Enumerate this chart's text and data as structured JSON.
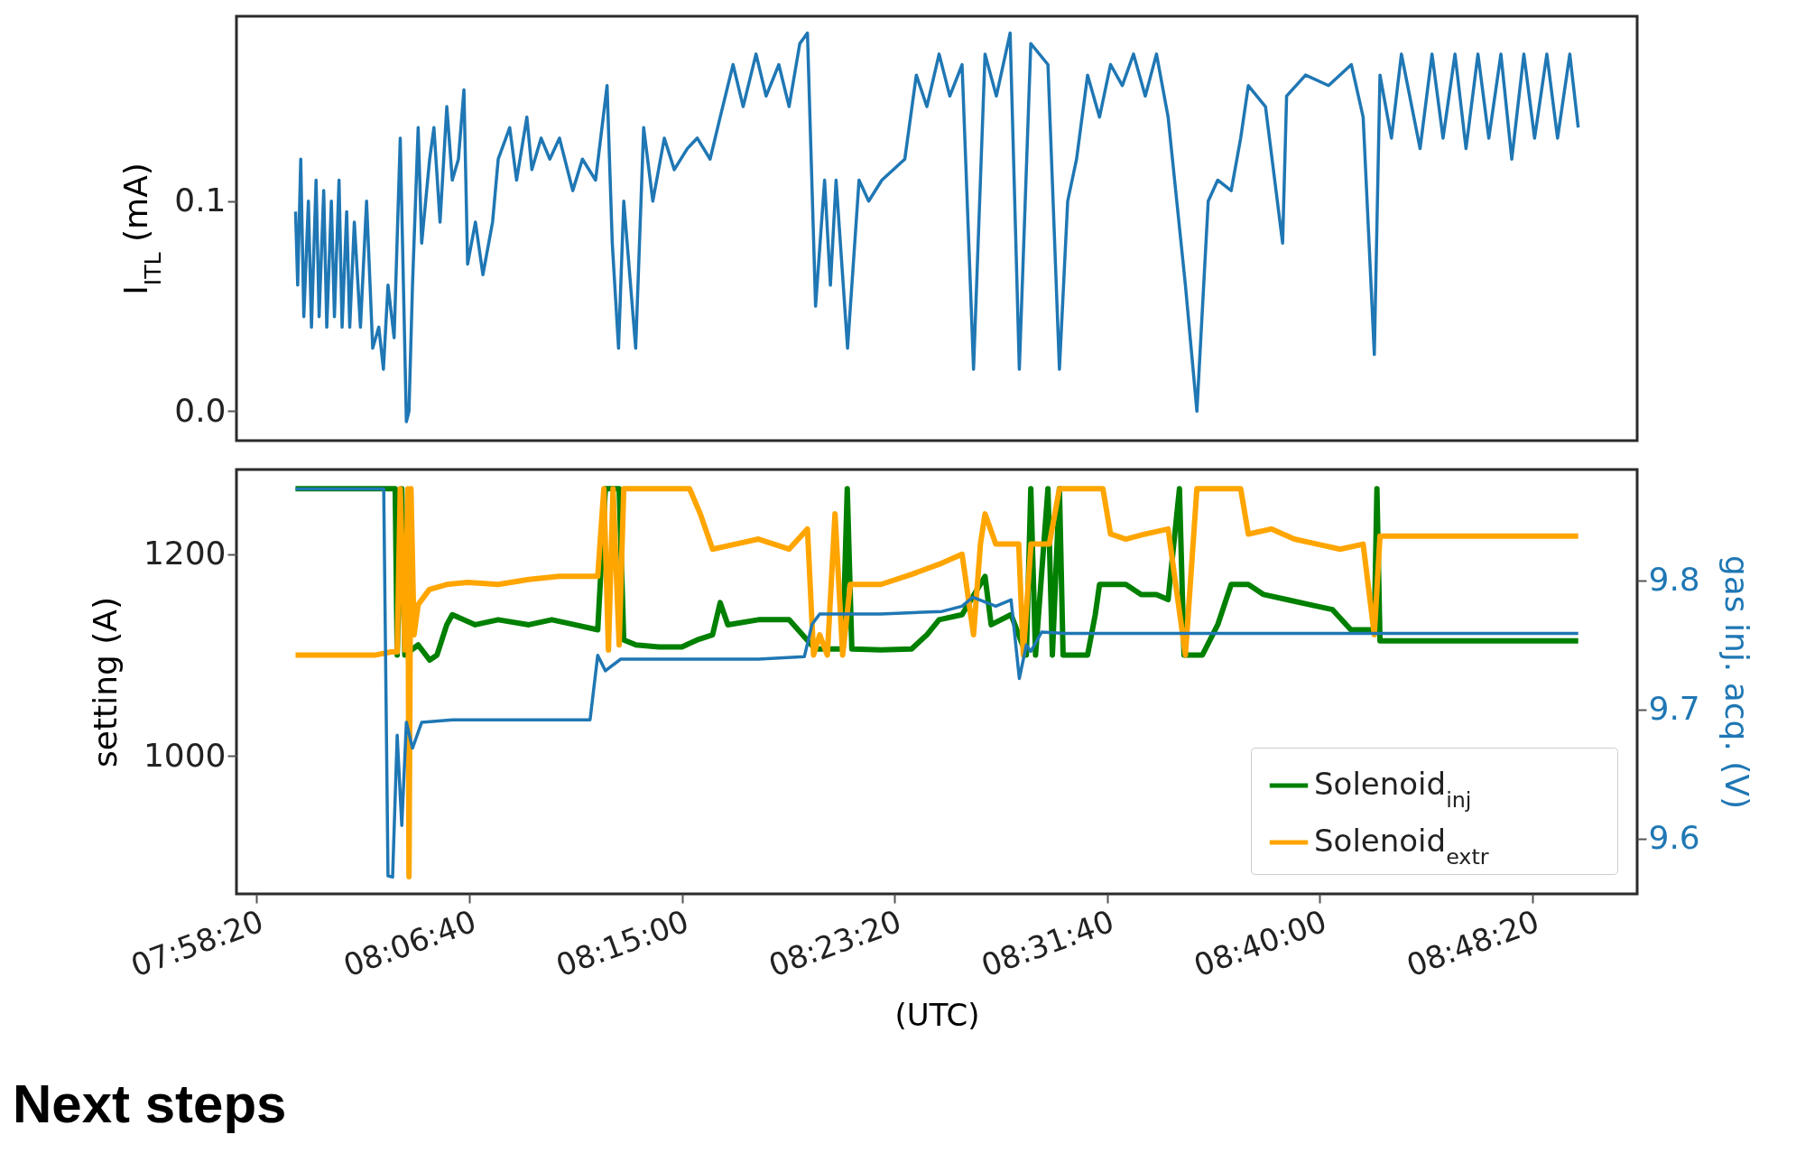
{
  "chart_data": [
    {
      "type": "line",
      "ylabel": "I$_{ITL}$ (mA)",
      "xlim": [
        7.959,
        8.874
      ],
      "ylim": [
        -0.014,
        0.188
      ],
      "yticks": [
        {
          "value": 0,
          "label": "0.0"
        },
        0.1
      ],
      "tick_labels": "y",
      "series": [
        {
          "color": "#1f77b4",
          "x": [
            7.9976,
            7.999,
            8.001,
            8.003,
            8.006,
            8.008,
            8.011,
            8.013,
            8.016,
            8.018,
            8.021,
            8.023,
            8.026,
            8.028,
            8.031,
            8.033,
            8.036,
            8.04,
            8.044,
            8.048,
            8.052,
            8.055,
            8.058,
            8.062,
            8.066,
            8.07,
            8.0717,
            8.074,
            8.0777,
            8.08,
            8.0852,
            8.088,
            8.092,
            8.0964,
            8.1,
            8.104,
            8.1076,
            8.11,
            8.1151,
            8.12,
            8.1263,
            8.13,
            8.1375,
            8.142,
            8.1487,
            8.152,
            8.158,
            8.1637,
            8.17,
            8.1787,
            8.185,
            8.1936,
            8.2011,
            8.2045,
            8.2086,
            8.212,
            8.2198,
            8.225,
            8.231,
            8.2385,
            8.245,
            8.2535,
            8.26,
            8.2684,
            8.275,
            8.2834,
            8.29,
            8.2984,
            8.305,
            8.3133,
            8.32,
            8.327,
            8.332,
            8.3373,
            8.3432,
            8.347,
            8.3507,
            8.3582,
            8.3657,
            8.372,
            8.3806,
            8.3956,
            8.4031,
            8.41,
            8.418,
            8.425,
            8.433,
            8.4405,
            8.448,
            8.4554,
            8.4644,
            8.4704,
            8.4779,
            8.4891,
            8.4966,
            8.502,
            8.5078,
            8.515,
            8.5228,
            8.53,
            8.5377,
            8.545,
            8.5527,
            8.56,
            8.5676,
            8.5789,
            8.5864,
            8.5938,
            8.6,
            8.6088,
            8.615,
            8.62,
            8.6312,
            8.6424,
            8.645,
            8.6574,
            8.6724,
            8.6873,
            8.695,
            8.7023,
            8.706,
            8.7135,
            8.72,
            8.7322,
            8.74,
            8.7472,
            8.755,
            8.7622,
            8.77,
            8.7771,
            8.785,
            8.7921,
            8.8,
            8.807,
            8.815,
            8.822,
            8.83,
            8.8355
          ],
          "values": [
            0.095,
            0.06,
            0.12,
            0.045,
            0.1,
            0.04,
            0.11,
            0.045,
            0.105,
            0.04,
            0.1,
            0.045,
            0.11,
            0.04,
            0.095,
            0.04,
            0.09,
            0.04,
            0.1,
            0.03,
            0.04,
            0.02,
            0.06,
            0.035,
            0.13,
            -0.005,
            0.0,
            0.06,
            0.135,
            0.08,
            0.12,
            0.135,
            0.09,
            0.145,
            0.11,
            0.12,
            0.153,
            0.07,
            0.09,
            0.065,
            0.09,
            0.12,
            0.135,
            0.11,
            0.14,
            0.115,
            0.13,
            0.12,
            0.13,
            0.105,
            0.12,
            0.11,
            0.155,
            0.08,
            0.03,
            0.1,
            0.03,
            0.135,
            0.1,
            0.13,
            0.115,
            0.125,
            0.13,
            0.12,
            0.14,
            0.165,
            0.145,
            0.17,
            0.15,
            0.165,
            0.145,
            0.175,
            0.18,
            0.05,
            0.11,
            0.06,
            0.11,
            0.03,
            0.11,
            0.1,
            0.11,
            0.12,
            0.16,
            0.145,
            0.17,
            0.15,
            0.165,
            0.02,
            0.17,
            0.15,
            0.18,
            0.02,
            0.175,
            0.165,
            0.02,
            0.1,
            0.12,
            0.16,
            0.14,
            0.165,
            0.155,
            0.17,
            0.15,
            0.17,
            0.14,
            0.06,
            0.0,
            0.1,
            0.11,
            0.105,
            0.13,
            0.155,
            0.145,
            0.08,
            0.15,
            0.16,
            0.155,
            0.165,
            0.14,
            0.027,
            0.16,
            0.13,
            0.17,
            0.125,
            0.17,
            0.13,
            0.17,
            0.125,
            0.17,
            0.13,
            0.17,
            0.12,
            0.17,
            0.13,
            0.17,
            0.13,
            0.17,
            0.135
          ]
        }
      ]
    },
    {
      "type": "line",
      "ylabel": "setting (A)",
      "y2label": "gas inj. acq. (V)",
      "xlabel": "(UTC)",
      "xlim": [
        7.959,
        8.874
      ],
      "xticks": [
        {
          "value": 7.97222,
          "label": "07:58:20"
        },
        {
          "value": 8.11111,
          "label": "08:06:40"
        },
        {
          "value": 8.25,
          "label": "08:15:00"
        },
        {
          "value": 8.38889,
          "label": "08:23:20"
        },
        {
          "value": 8.52778,
          "label": "08:31:40"
        },
        {
          "value": 8.66667,
          "label": "08:40:00"
        },
        {
          "value": 8.80556,
          "label": "08:48:20"
        }
      ],
      "ylim": [
        863,
        1284
      ],
      "yticks": [
        1000,
        1200
      ],
      "y2lim": [
        9.557,
        9.886
      ],
      "y2ticks": [
        9.6,
        9.7,
        9.8
      ],
      "legend": "bottom right",
      "annotations": [
        "Next steps"
      ],
      "series": [
        {
          "name": "Solenoid$_{inj}$",
          "color": "#008000",
          "x": [
            7.9976,
            8.0627,
            8.064,
            8.067,
            8.069,
            8.0777,
            8.0852,
            8.09,
            8.0964,
            8.1,
            8.115,
            8.13,
            8.15,
            8.165,
            8.18,
            8.195,
            8.2,
            8.205,
            8.209,
            8.212,
            8.22,
            8.235,
            8.25,
            8.26,
            8.27,
            8.275,
            8.28,
            8.3,
            8.32,
            8.337,
            8.355,
            8.358,
            8.361,
            8.38,
            8.4,
            8.41,
            8.418,
            8.433,
            8.448,
            8.452,
            8.465,
            8.475,
            8.4779,
            8.481,
            8.4891,
            8.492,
            8.4966,
            8.499,
            8.505,
            8.515,
            8.52,
            8.5228,
            8.54,
            8.55,
            8.56,
            8.5676,
            8.575,
            8.578,
            8.59,
            8.6,
            8.6088,
            8.62,
            8.63,
            8.645,
            8.66,
            8.675,
            8.687,
            8.7023,
            8.704,
            8.706,
            8.75,
            8.8355
          ],
          "values": [
            1265,
            1265,
            1100,
            1265,
            1100,
            1110,
            1095,
            1100,
            1130,
            1140,
            1130,
            1135,
            1130,
            1135,
            1130,
            1125,
            1265,
            1265,
            1265,
            1115,
            1110,
            1108,
            1108,
            1115,
            1120,
            1152,
            1130,
            1135,
            1135,
            1106,
            1106,
            1265,
            1106,
            1105,
            1106,
            1120,
            1135,
            1140,
            1178,
            1130,
            1140,
            1100,
            1265,
            1100,
            1265,
            1100,
            1265,
            1100,
            1100,
            1100,
            1140,
            1170,
            1170,
            1160,
            1160,
            1155,
            1265,
            1100,
            1100,
            1130,
            1170,
            1170,
            1160,
            1155,
            1150,
            1145,
            1125,
            1125,
            1265,
            1114,
            1114,
            1114
          ]
        },
        {
          "name": "Solenoid$_{extr}$",
          "color": "#ffa500",
          "x": [
            7.9976,
            8.05,
            8.06,
            8.064,
            8.066,
            8.069,
            8.071,
            8.0717,
            8.073,
            8.075,
            8.0777,
            8.085,
            8.0964,
            8.11,
            8.13,
            8.15,
            8.17,
            8.195,
            8.199,
            8.202,
            8.205,
            8.209,
            8.212,
            8.225,
            8.24,
            8.255,
            8.262,
            8.27,
            8.285,
            8.3,
            8.32,
            8.332,
            8.336,
            8.34,
            8.345,
            8.35,
            8.355,
            8.36,
            8.38,
            8.4,
            8.418,
            8.433,
            8.4405,
            8.445,
            8.448,
            8.455,
            8.47,
            8.473,
            8.478,
            8.49,
            8.4966,
            8.51,
            8.525,
            8.53,
            8.54,
            8.5527,
            8.5676,
            8.5789,
            8.5864,
            8.6,
            8.615,
            8.62,
            8.635,
            8.65,
            8.665,
            8.68,
            8.695,
            8.7023,
            8.706,
            8.75,
            8.8355
          ],
          "values": [
            1100,
            1100,
            1103,
            1103,
            1265,
            1105,
            1265,
            880,
            1265,
            1120,
            1150,
            1165,
            1170,
            1172,
            1170,
            1175,
            1178,
            1178,
            1265,
            1105,
            1265,
            1110,
            1265,
            1265,
            1265,
            1265,
            1240,
            1205,
            1210,
            1215,
            1205,
            1225,
            1100,
            1120,
            1100,
            1240,
            1100,
            1170,
            1170,
            1180,
            1190,
            1200,
            1120,
            1210,
            1240,
            1210,
            1210,
            1100,
            1210,
            1210,
            1265,
            1265,
            1265,
            1220,
            1215,
            1220,
            1225,
            1100,
            1265,
            1265,
            1265,
            1220,
            1225,
            1215,
            1210,
            1205,
            1210,
            1120,
            1218,
            1218,
            1218
          ]
        },
        {
          "axis": "y2",
          "color": "#1f77b4",
          "x": [
            7.9976,
            8.05,
            8.0552,
            8.058,
            8.061,
            8.064,
            8.067,
            8.07,
            8.074,
            8.08,
            8.1,
            8.15,
            8.19,
            8.195,
            8.2,
            8.21,
            8.25,
            8.3,
            8.33,
            8.335,
            8.34,
            8.38,
            8.42,
            8.433,
            8.44,
            8.455,
            8.465,
            8.4704,
            8.475,
            8.4779,
            8.485,
            8.5,
            8.55,
            8.6,
            8.65,
            8.7,
            8.75,
            8.8355
          ],
          "values": [
            9.871,
            9.871,
            9.871,
            9.571,
            9.57,
            9.68,
            9.61,
            9.69,
            9.67,
            9.69,
            9.692,
            9.692,
            9.692,
            9.742,
            9.73,
            9.739,
            9.739,
            9.739,
            9.741,
            9.766,
            9.774,
            9.774,
            9.776,
            9.78,
            9.787,
            9.78,
            9.785,
            9.724,
            9.75,
            9.745,
            9.76,
            9.759,
            9.759,
            9.759,
            9.759,
            9.759,
            9.759,
            9.759
          ]
        }
      ]
    }
  ]
}
